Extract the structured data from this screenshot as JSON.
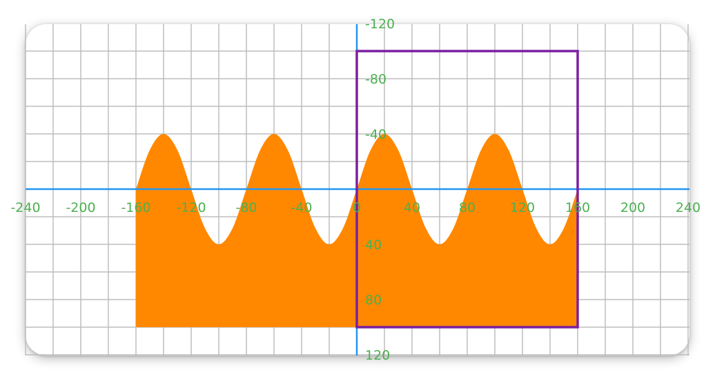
{
  "chart_data": {
    "type": "area",
    "title": "",
    "xlabel": "",
    "ylabel": "",
    "xlim": [
      -240,
      240
    ],
    "ylim": [
      -120,
      120
    ],
    "y_axis_inverted": true,
    "grid": true,
    "grid_step": 20,
    "x_ticks": [
      -240,
      -200,
      -160,
      -120,
      -80,
      -40,
      0,
      40,
      80,
      120,
      160,
      200,
      240
    ],
    "x_tick_labels": [
      "-240",
      "-200",
      "-160",
      "-120",
      "-80",
      "-40",
      "0",
      "40",
      "80",
      "120",
      "160",
      "200",
      "240"
    ],
    "y_ticks": [
      -120,
      -80,
      -40,
      40,
      80,
      120
    ],
    "y_tick_labels": [
      "-120",
      "-80",
      "-40",
      "40",
      "80",
      "120"
    ],
    "series": [
      {
        "type": "area",
        "color": "#ff8800",
        "x": [
          -160,
          -150,
          -140,
          -130,
          -120,
          -110,
          -100,
          -90,
          -80,
          -70,
          -60,
          -50,
          -40,
          -30,
          -20,
          -10,
          0,
          10,
          20,
          30,
          40,
          50,
          60,
          70,
          80,
          90,
          100,
          110,
          120,
          130,
          140,
          150,
          160
        ],
        "y": [
          0,
          -28.3,
          -40,
          -28.3,
          0,
          28.3,
          40,
          28.3,
          0,
          -28.3,
          -40,
          -28.3,
          0,
          28.3,
          40,
          28.3,
          0,
          -28.3,
          -40,
          -28.3,
          0,
          28.3,
          40,
          28.3,
          0,
          -28.3,
          -40,
          -28.3,
          0,
          28.3,
          40,
          28.3,
          0
        ],
        "baseline": 100
      }
    ],
    "annotations": [
      {
        "type": "rectangle",
        "color": "#7b1fa2",
        "x0": 0,
        "x1": 160,
        "y0": -100,
        "y1": 100
      }
    ],
    "colors": {
      "axis": "#2196f3",
      "grid": "#bdbdbd",
      "tick_label": "#4caf50",
      "fill": "#ff8800",
      "rect": "#7b1fa2"
    }
  }
}
